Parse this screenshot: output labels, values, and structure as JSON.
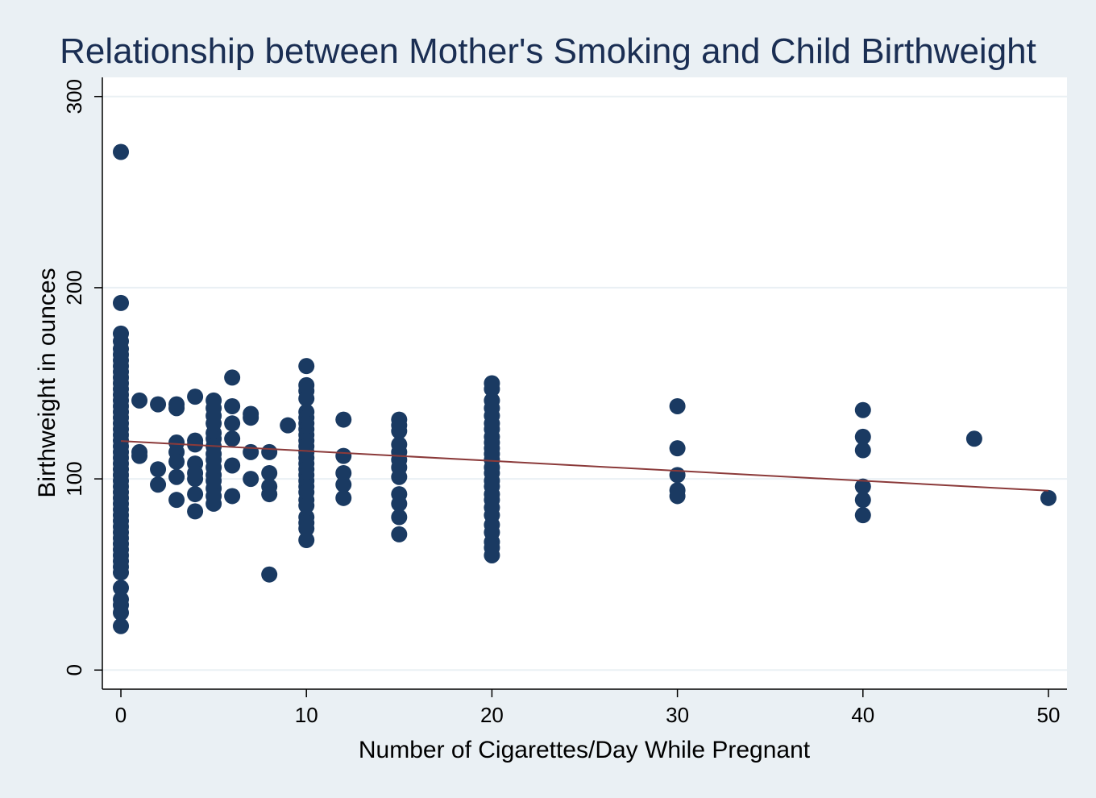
{
  "chart_data": {
    "type": "scatter",
    "title": "Relationship between Mother's Smoking and Child Birthweight",
    "xlabel": "Number of Cigarettes/Day While Pregnant",
    "ylabel": "Birthweight in ounces",
    "xlim": [
      -1,
      51
    ],
    "ylim": [
      -10,
      310
    ],
    "xticks": [
      0,
      10,
      20,
      30,
      40,
      50
    ],
    "yticks": [
      0,
      100,
      200,
      300
    ],
    "grid": true,
    "colors": {
      "points": "#1a3a62",
      "fit_line": "#8b3a3a",
      "background": "#eaf0f4",
      "plot_area": "#ffffff",
      "title": "#1a2e53"
    },
    "fit_line": {
      "x": [
        0,
        50
      ],
      "y": [
        119.8,
        93.8
      ]
    },
    "series": [
      {
        "points": [
          [
            0,
            271
          ],
          [
            0,
            192
          ],
          [
            0,
            176
          ],
          [
            0,
            172
          ],
          [
            0,
            168
          ],
          [
            0,
            165
          ],
          [
            0,
            162
          ],
          [
            0,
            159
          ],
          [
            0,
            156
          ],
          [
            0,
            153
          ],
          [
            0,
            150
          ],
          [
            0,
            147
          ],
          [
            0,
            144
          ],
          [
            0,
            141
          ],
          [
            0,
            138
          ],
          [
            0,
            135
          ],
          [
            0,
            132
          ],
          [
            0,
            129
          ],
          [
            0,
            126
          ],
          [
            0,
            123
          ],
          [
            0,
            120
          ],
          [
            0,
            117
          ],
          [
            0,
            114
          ],
          [
            0,
            111
          ],
          [
            0,
            108
          ],
          [
            0,
            105
          ],
          [
            0,
            102
          ],
          [
            0,
            99
          ],
          [
            0,
            96
          ],
          [
            0,
            93
          ],
          [
            0,
            90
          ],
          [
            0,
            87
          ],
          [
            0,
            84
          ],
          [
            0,
            81
          ],
          [
            0,
            78
          ],
          [
            0,
            75
          ],
          [
            0,
            72
          ],
          [
            0,
            69
          ],
          [
            0,
            66
          ],
          [
            0,
            63
          ],
          [
            0,
            60
          ],
          [
            0,
            57
          ],
          [
            0,
            54
          ],
          [
            0,
            51
          ],
          [
            0,
            43
          ],
          [
            0,
            37
          ],
          [
            0,
            34
          ],
          [
            0,
            30
          ],
          [
            0,
            23
          ],
          [
            1,
            141
          ],
          [
            1,
            114
          ],
          [
            1,
            112
          ],
          [
            2,
            139
          ],
          [
            2,
            105
          ],
          [
            2,
            97
          ],
          [
            3,
            139
          ],
          [
            3,
            137
          ],
          [
            3,
            119
          ],
          [
            3,
            114
          ],
          [
            3,
            109
          ],
          [
            3,
            101
          ],
          [
            3,
            89
          ],
          [
            4,
            143
          ],
          [
            4,
            120
          ],
          [
            4,
            118
          ],
          [
            4,
            108
          ],
          [
            4,
            103
          ],
          [
            4,
            100
          ],
          [
            4,
            92
          ],
          [
            4,
            83
          ],
          [
            5,
            141
          ],
          [
            5,
            137
          ],
          [
            5,
            133
          ],
          [
            5,
            129
          ],
          [
            5,
            124
          ],
          [
            5,
            121
          ],
          [
            5,
            117
          ],
          [
            5,
            113
          ],
          [
            5,
            110
          ],
          [
            5,
            106
          ],
          [
            5,
            102
          ],
          [
            5,
            99
          ],
          [
            5,
            95
          ],
          [
            5,
            91
          ],
          [
            5,
            87
          ],
          [
            6,
            153
          ],
          [
            6,
            138
          ],
          [
            6,
            129
          ],
          [
            6,
            121
          ],
          [
            6,
            107
          ],
          [
            6,
            91
          ],
          [
            7,
            134
          ],
          [
            7,
            132
          ],
          [
            7,
            114
          ],
          [
            7,
            100
          ],
          [
            8,
            114
          ],
          [
            8,
            103
          ],
          [
            8,
            96
          ],
          [
            8,
            92
          ],
          [
            8,
            50
          ],
          [
            9,
            128
          ],
          [
            10,
            159
          ],
          [
            10,
            149
          ],
          [
            10,
            146
          ],
          [
            10,
            142
          ],
          [
            10,
            135
          ],
          [
            10,
            132
          ],
          [
            10,
            129
          ],
          [
            10,
            126
          ],
          [
            10,
            123
          ],
          [
            10,
            120
          ],
          [
            10,
            117
          ],
          [
            10,
            114
          ],
          [
            10,
            111
          ],
          [
            10,
            108
          ],
          [
            10,
            105
          ],
          [
            10,
            102
          ],
          [
            10,
            99
          ],
          [
            10,
            96
          ],
          [
            10,
            93
          ],
          [
            10,
            89
          ],
          [
            10,
            86
          ],
          [
            10,
            80
          ],
          [
            10,
            77
          ],
          [
            10,
            74
          ],
          [
            10,
            68
          ],
          [
            12,
            131
          ],
          [
            12,
            112
          ],
          [
            12,
            103
          ],
          [
            12,
            97
          ],
          [
            12,
            90
          ],
          [
            15,
            131
          ],
          [
            15,
            128
          ],
          [
            15,
            125
          ],
          [
            15,
            118
          ],
          [
            15,
            114
          ],
          [
            15,
            110
          ],
          [
            15,
            106
          ],
          [
            15,
            101
          ],
          [
            15,
            92
          ],
          [
            15,
            87
          ],
          [
            15,
            80
          ],
          [
            15,
            71
          ],
          [
            20,
            150
          ],
          [
            20,
            147
          ],
          [
            20,
            141
          ],
          [
            20,
            137
          ],
          [
            20,
            133
          ],
          [
            20,
            129
          ],
          [
            20,
            126
          ],
          [
            20,
            122
          ],
          [
            20,
            119
          ],
          [
            20,
            116
          ],
          [
            20,
            113
          ],
          [
            20,
            110
          ],
          [
            20,
            106
          ],
          [
            20,
            103
          ],
          [
            20,
            99
          ],
          [
            20,
            96
          ],
          [
            20,
            92
          ],
          [
            20,
            89
          ],
          [
            20,
            85
          ],
          [
            20,
            81
          ],
          [
            20,
            76
          ],
          [
            20,
            72
          ],
          [
            20,
            67
          ],
          [
            20,
            64
          ],
          [
            20,
            60
          ],
          [
            30,
            138
          ],
          [
            30,
            116
          ],
          [
            30,
            102
          ],
          [
            30,
            94
          ],
          [
            30,
            91
          ],
          [
            40,
            136
          ],
          [
            40,
            122
          ],
          [
            40,
            115
          ],
          [
            40,
            96
          ],
          [
            40,
            89
          ],
          [
            40,
            81
          ],
          [
            46,
            121
          ],
          [
            50,
            90
          ]
        ]
      }
    ]
  }
}
